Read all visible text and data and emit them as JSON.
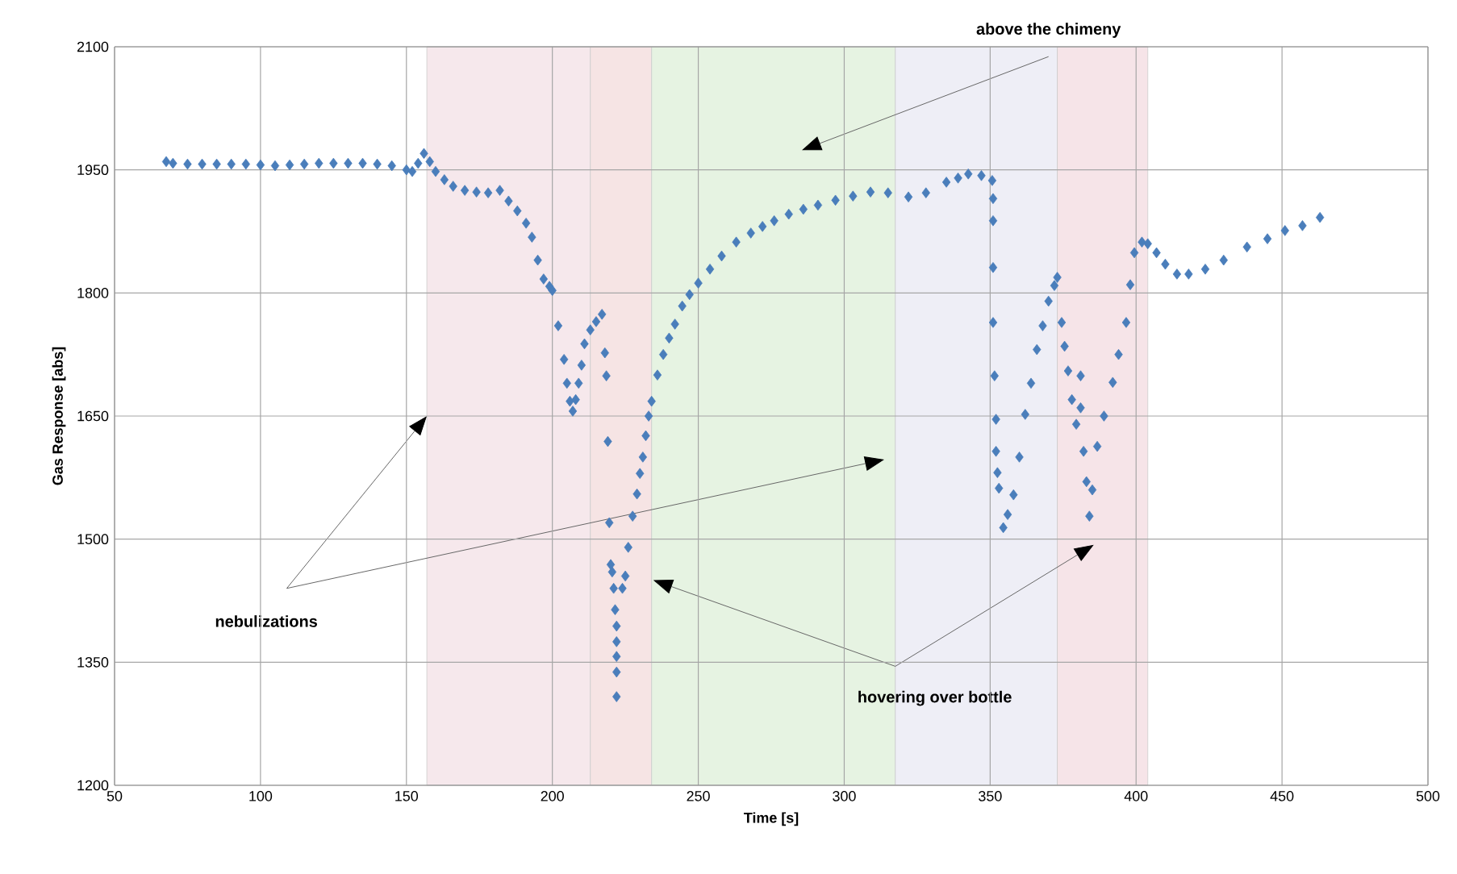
{
  "chart_data": {
    "type": "scatter",
    "xlabel": "Time [s]",
    "ylabel": "Gas Response [abs]",
    "xlim": [
      50,
      500
    ],
    "xticks": [
      50,
      100,
      150,
      200,
      250,
      300,
      350,
      400,
      450,
      500
    ],
    "ylim": [
      1200,
      2100
    ],
    "yticks": [
      1200,
      1350,
      1500,
      1650,
      1800,
      1950,
      2100
    ],
    "grid": true,
    "legend": false,
    "marker": "diamond",
    "series": [
      {
        "color": "#4a7ebb",
        "x": [
          67.7,
          70,
          75,
          80,
          85,
          90,
          95,
          100,
          105,
          110,
          115,
          120,
          125,
          130,
          135,
          140,
          145,
          150,
          152,
          154,
          156,
          158,
          160,
          163,
          166,
          170,
          174,
          178,
          182,
          185,
          188,
          191,
          193,
          195,
          197,
          199,
          200,
          202,
          204,
          205,
          206,
          207,
          208,
          209,
          210,
          211,
          213,
          215,
          217,
          218,
          218.5,
          219,
          219.5,
          220,
          220.5,
          221,
          221.5,
          222,
          222,
          222,
          222,
          222,
          224,
          225,
          226,
          227.5,
          229,
          230,
          231,
          232,
          233,
          234,
          236,
          238,
          240,
          242,
          244.5,
          247,
          250,
          254,
          258,
          263,
          268,
          272,
          276,
          281,
          286,
          291,
          297,
          303,
          309,
          315,
          322,
          328,
          335,
          339,
          342.5,
          347,
          350.7,
          351,
          351,
          351,
          351,
          351.5,
          352,
          352,
          352.5,
          353,
          354.5,
          356,
          358,
          360,
          362,
          364,
          366,
          368,
          370,
          372,
          373,
          374.5,
          375.5,
          376.7,
          378,
          379.5,
          381,
          381,
          382,
          383,
          384,
          385,
          386.7,
          389,
          392,
          394,
          396.6,
          398,
          399.4,
          402,
          404,
          407,
          410,
          414,
          418,
          423.7,
          430,
          438,
          445,
          451,
          457,
          463
        ],
        "values": [
          1960,
          1958,
          1957,
          1957,
          1957,
          1957,
          1957,
          1956,
          1955,
          1956,
          1957,
          1958,
          1958,
          1958,
          1958,
          1957,
          1955,
          1950,
          1948,
          1958,
          1970,
          1960,
          1948,
          1938,
          1930,
          1925,
          1923,
          1922,
          1925,
          1912,
          1900,
          1885,
          1868,
          1840,
          1817,
          1808,
          1803,
          1760,
          1719,
          1690,
          1668,
          1656,
          1670,
          1690,
          1712,
          1738,
          1755,
          1765,
          1774,
          1727,
          1699,
          1619,
          1520,
          1469,
          1460,
          1440,
          1414,
          1394,
          1375,
          1357,
          1338,
          1308,
          1440,
          1455,
          1490,
          1528,
          1555,
          1580,
          1600,
          1626,
          1650,
          1668,
          1700,
          1725,
          1745,
          1762,
          1784,
          1798,
          1812,
          1829,
          1845,
          1862,
          1873,
          1881,
          1888,
          1896,
          1902,
          1907,
          1913,
          1918,
          1923,
          1922,
          1917,
          1922,
          1935,
          1940,
          1945,
          1943,
          1937,
          1915,
          1888,
          1831,
          1764,
          1699,
          1646,
          1607,
          1581,
          1562,
          1514,
          1530,
          1554,
          1600,
          1652,
          1690,
          1731,
          1760,
          1790,
          1809,
          1819,
          1764,
          1735,
          1705,
          1670,
          1640,
          1699,
          1660,
          1607,
          1570,
          1528,
          1560,
          1613,
          1650,
          1691,
          1725,
          1764,
          1810,
          1849,
          1862,
          1860,
          1849,
          1835,
          1823,
          1823,
          1829,
          1840,
          1856,
          1866,
          1876,
          1882,
          1892
        ]
      }
    ],
    "bands": [
      {
        "axis": "x",
        "from": 157,
        "to": 213,
        "color": "#f6e8ec"
      },
      {
        "axis": "x",
        "from": 213,
        "to": 234,
        "color": "#f6e4e4"
      },
      {
        "axis": "x",
        "from": 234,
        "to": 317.5,
        "color": "#e6f3e2"
      },
      {
        "axis": "x",
        "from": 317.5,
        "to": 373,
        "color": "#eeeef6"
      },
      {
        "axis": "x",
        "from": 373,
        "to": 404,
        "color": "#f6e4e8"
      }
    ],
    "annotations": [
      "above the chimeny",
      "nebulizations",
      "hovering over bottle"
    ]
  }
}
